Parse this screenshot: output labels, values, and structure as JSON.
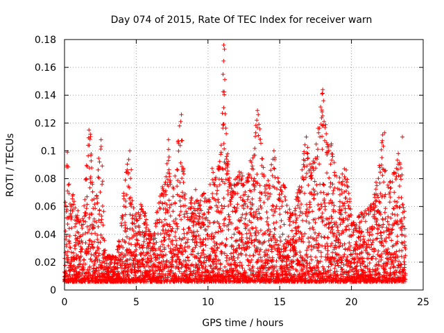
{
  "chart_data": {
    "type": "scatter",
    "title": "Day 074 of 2015, Rate Of TEC Index for receiver warn",
    "xlabel": "GPS time / hours",
    "ylabel": "ROTI / TECUs",
    "xlim": [
      0,
      25
    ],
    "ylim": [
      0,
      0.18
    ],
    "x_ticks": [
      0,
      5,
      10,
      15,
      20,
      25
    ],
    "x_tick_labels": [
      "0",
      "5",
      "10",
      "15",
      "20",
      "25"
    ],
    "y_ticks": [
      0,
      0.02,
      0.04,
      0.06,
      0.08,
      0.1,
      0.12,
      0.14,
      0.16,
      0.18
    ],
    "y_tick_labels": [
      "0",
      "0.02",
      "0.04",
      "0.06",
      "0.08",
      "0.1",
      "0.12",
      "0.14",
      "0.16",
      "0.18"
    ],
    "grid": true,
    "marker": "+",
    "color": "#ff0000",
    "series": [
      {
        "name": "ROTI",
        "note": "dense noisy scatter approximated by per-column envelope: x in hours, [low, high] ROTI",
        "envelope": [
          [
            0.0,
            0.005,
            0.045
          ],
          [
            0.2,
            0.005,
            0.098
          ],
          [
            0.4,
            0.005,
            0.06
          ],
          [
            0.6,
            0.006,
            0.075
          ],
          [
            0.8,
            0.006,
            0.055
          ],
          [
            1.0,
            0.006,
            0.06
          ],
          [
            1.2,
            0.006,
            0.05
          ],
          [
            1.4,
            0.006,
            0.065
          ],
          [
            1.6,
            0.006,
            0.108
          ],
          [
            1.8,
            0.006,
            0.115
          ],
          [
            2.0,
            0.006,
            0.07
          ],
          [
            2.2,
            0.006,
            0.06
          ],
          [
            2.4,
            0.006,
            0.1
          ],
          [
            2.6,
            0.006,
            0.108
          ],
          [
            2.8,
            0.006,
            0.03
          ],
          [
            3.0,
            0.006,
            0.025
          ],
          [
            3.2,
            0.006,
            0.025
          ],
          [
            3.4,
            0.006,
            0.025
          ],
          [
            3.6,
            0.006,
            0.025
          ],
          [
            3.8,
            0.006,
            0.04
          ],
          [
            4.0,
            0.006,
            0.055
          ],
          [
            4.2,
            0.006,
            0.082
          ],
          [
            4.4,
            0.006,
            0.092
          ],
          [
            4.6,
            0.006,
            0.1
          ],
          [
            4.8,
            0.006,
            0.06
          ],
          [
            5.0,
            0.006,
            0.055
          ],
          [
            5.2,
            0.006,
            0.06
          ],
          [
            5.4,
            0.006,
            0.065
          ],
          [
            5.6,
            0.006,
            0.06
          ],
          [
            5.8,
            0.006,
            0.045
          ],
          [
            6.0,
            0.006,
            0.042
          ],
          [
            6.2,
            0.006,
            0.04
          ],
          [
            6.4,
            0.006,
            0.055
          ],
          [
            6.6,
            0.006,
            0.065
          ],
          [
            6.8,
            0.006,
            0.075
          ],
          [
            7.0,
            0.006,
            0.08
          ],
          [
            7.2,
            0.006,
            0.108
          ],
          [
            7.4,
            0.006,
            0.085
          ],
          [
            7.6,
            0.006,
            0.08
          ],
          [
            7.8,
            0.006,
            0.09
          ],
          [
            8.0,
            0.006,
            0.126
          ],
          [
            8.2,
            0.006,
            0.11
          ],
          [
            8.4,
            0.006,
            0.075
          ],
          [
            8.6,
            0.006,
            0.06
          ],
          [
            8.8,
            0.006,
            0.065
          ],
          [
            9.0,
            0.006,
            0.08
          ],
          [
            9.2,
            0.006,
            0.07
          ],
          [
            9.4,
            0.006,
            0.06
          ],
          [
            9.6,
            0.006,
            0.07
          ],
          [
            9.8,
            0.006,
            0.075
          ],
          [
            10.0,
            0.006,
            0.06
          ],
          [
            10.2,
            0.006,
            0.09
          ],
          [
            10.4,
            0.006,
            0.085
          ],
          [
            10.6,
            0.006,
            0.08
          ],
          [
            10.8,
            0.006,
            0.1
          ],
          [
            11.0,
            0.006,
            0.115
          ],
          [
            11.1,
            0.006,
            0.176
          ],
          [
            11.3,
            0.006,
            0.11
          ],
          [
            11.5,
            0.006,
            0.085
          ],
          [
            11.7,
            0.006,
            0.07
          ],
          [
            12.0,
            0.006,
            0.085
          ],
          [
            12.2,
            0.006,
            0.09
          ],
          [
            12.4,
            0.006,
            0.085
          ],
          [
            12.6,
            0.006,
            0.088
          ],
          [
            12.8,
            0.006,
            0.09
          ],
          [
            13.0,
            0.006,
            0.095
          ],
          [
            13.2,
            0.006,
            0.1
          ],
          [
            13.4,
            0.006,
            0.129
          ],
          [
            13.6,
            0.006,
            0.12
          ],
          [
            13.8,
            0.006,
            0.1
          ],
          [
            14.0,
            0.006,
            0.075
          ],
          [
            14.2,
            0.006,
            0.08
          ],
          [
            14.4,
            0.006,
            0.09
          ],
          [
            14.6,
            0.006,
            0.1
          ],
          [
            14.8,
            0.006,
            0.085
          ],
          [
            15.0,
            0.006,
            0.075
          ],
          [
            15.2,
            0.006,
            0.08
          ],
          [
            15.4,
            0.006,
            0.078
          ],
          [
            15.6,
            0.006,
            0.06
          ],
          [
            15.8,
            0.006,
            0.055
          ],
          [
            16.0,
            0.006,
            0.06
          ],
          [
            16.2,
            0.006,
            0.07
          ],
          [
            16.4,
            0.006,
            0.075
          ],
          [
            16.6,
            0.006,
            0.09
          ],
          [
            16.8,
            0.006,
            0.11
          ],
          [
            17.0,
            0.006,
            0.1
          ],
          [
            17.2,
            0.006,
            0.09
          ],
          [
            17.4,
            0.006,
            0.095
          ],
          [
            17.6,
            0.006,
            0.11
          ],
          [
            17.8,
            0.006,
            0.13
          ],
          [
            18.0,
            0.006,
            0.143
          ],
          [
            18.2,
            0.006,
            0.12
          ],
          [
            18.4,
            0.006,
            0.11
          ],
          [
            18.6,
            0.006,
            0.105
          ],
          [
            18.8,
            0.006,
            0.1
          ],
          [
            19.0,
            0.006,
            0.095
          ],
          [
            19.2,
            0.006,
            0.08
          ],
          [
            19.4,
            0.006,
            0.085
          ],
          [
            19.6,
            0.006,
            0.09
          ],
          [
            19.8,
            0.006,
            0.08
          ],
          [
            20.0,
            0.006,
            0.06
          ],
          [
            20.2,
            0.006,
            0.05
          ],
          [
            20.4,
            0.006,
            0.052
          ],
          [
            20.6,
            0.006,
            0.055
          ],
          [
            20.8,
            0.006,
            0.058
          ],
          [
            21.0,
            0.006,
            0.06
          ],
          [
            21.2,
            0.006,
            0.065
          ],
          [
            21.4,
            0.006,
            0.062
          ],
          [
            21.6,
            0.006,
            0.07
          ],
          [
            21.8,
            0.006,
            0.085
          ],
          [
            22.0,
            0.006,
            0.1
          ],
          [
            22.2,
            0.006,
            0.113
          ],
          [
            22.4,
            0.006,
            0.09
          ],
          [
            22.6,
            0.006,
            0.08
          ],
          [
            22.8,
            0.006,
            0.08
          ],
          [
            23.0,
            0.006,
            0.09
          ],
          [
            23.2,
            0.006,
            0.095
          ],
          [
            23.4,
            0.006,
            0.11
          ],
          [
            23.6,
            0.006,
            0.07
          ],
          [
            23.8,
            0.006,
            0.055
          ]
        ],
        "peaks": [
          [
            11.1,
            0.176
          ],
          [
            11.15,
            0.173
          ],
          [
            11.05,
            0.155
          ],
          [
            11.1,
            0.131
          ],
          [
            11.0,
            0.127
          ],
          [
            11.05,
            0.119
          ],
          [
            18.0,
            0.144
          ],
          [
            17.95,
            0.141
          ],
          [
            18.05,
            0.136
          ],
          [
            17.95,
            0.128
          ],
          [
            13.45,
            0.129
          ],
          [
            13.5,
            0.126
          ],
          [
            13.4,
            0.122
          ],
          [
            8.15,
            0.126
          ],
          [
            8.1,
            0.121
          ],
          [
            22.3,
            0.113
          ],
          [
            1.7,
            0.115
          ],
          [
            1.8,
            0.112
          ],
          [
            7.25,
            0.108
          ],
          [
            2.55,
            0.108
          ],
          [
            23.55,
            0.11
          ],
          [
            0.2,
            0.099
          ],
          [
            4.55,
            0.1
          ],
          [
            14.6,
            0.1
          ],
          [
            16.85,
            0.11
          ],
          [
            18.6,
            0.105
          ]
        ]
      }
    ]
  }
}
